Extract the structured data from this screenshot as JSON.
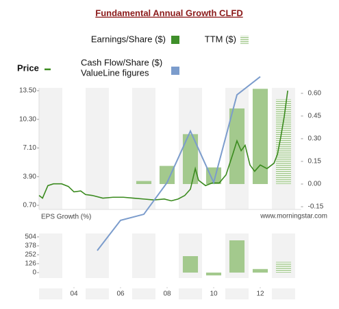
{
  "chart_data": [
    {
      "type": "combo",
      "title": "Fundamental Annual Growth  CLFD",
      "legend_note": "ValueLine figures",
      "xlim": [
        2002.5,
        2013.75
      ],
      "xticks": [
        {
          "value": 2004,
          "label": "04"
        },
        {
          "value": 2006,
          "label": "06"
        },
        {
          "value": 2008,
          "label": "08"
        },
        {
          "value": 2010,
          "label": "10"
        },
        {
          "value": 2012,
          "label": "12"
        }
      ],
      "ylim": [
        0.24,
        13.81
      ],
      "yticks": [
        {
          "value": 13.5,
          "label": "13.50"
        },
        {
          "value": 10.3,
          "label": "10.30"
        },
        {
          "value": 7.1,
          "label": "7.10"
        },
        {
          "value": 3.9,
          "label": "3.90"
        },
        {
          "value": 0.7,
          "label": "0.70"
        }
      ],
      "y2lim": [
        -0.168,
        0.636
      ],
      "y2ticks": [
        {
          "value": 0.6,
          "label": "0.60"
        },
        {
          "value": 0.45,
          "label": "0.45"
        },
        {
          "value": 0.3,
          "label": "0.30"
        },
        {
          "value": 0.15,
          "label": "0.15"
        },
        {
          "value": 0,
          "label": "0.00"
        },
        {
          "value": -0.15,
          "label": "-0.15"
        }
      ],
      "series": [
        {
          "name": "Earnings/Share ($)",
          "type": "bar",
          "axis": "y2",
          "color": "#a3c98d",
          "legend_color": "#3f8f2a",
          "x": [
            2007,
            2008,
            2009,
            2010,
            2011,
            2012
          ],
          "values": [
            0.02,
            0.12,
            0.33,
            0.11,
            0.5,
            0.63
          ]
        },
        {
          "name": "TTM ($)",
          "type": "bar",
          "pattern": "striped",
          "axis": "y2",
          "color": "#a3c98d",
          "x": [
            2013
          ],
          "values": [
            0.56
          ]
        },
        {
          "name": "Price",
          "type": "line",
          "color": "#3a8a1e",
          "x": [
            2002.5,
            2002.65,
            2002.88,
            2003.12,
            2003.47,
            2003.76,
            2004,
            2004.29,
            2004.5,
            2004.79,
            2005.24,
            2005.68,
            2006.12,
            2006.56,
            2007,
            2007.44,
            2007.88,
            2008.18,
            2008.47,
            2008.76,
            2009,
            2009.21,
            2009.35,
            2009.65,
            2009.94,
            2010.24,
            2010.53,
            2010.82,
            2011,
            2011.18,
            2011.35,
            2011.56,
            2011.76,
            2012,
            2012.29,
            2012.59,
            2012.74,
            2012.88,
            2013.03,
            2013.18
          ],
          "values": [
            1.8,
            1.5,
            2.9,
            3.1,
            3.1,
            2.8,
            2.2,
            2.3,
            1.9,
            1.8,
            1.5,
            1.6,
            1.6,
            1.5,
            1.4,
            1.3,
            1.4,
            1.2,
            1.4,
            1.8,
            2.5,
            4.8,
            3.5,
            2.9,
            3.2,
            3.2,
            4.1,
            6.4,
            7.9,
            6.8,
            7.4,
            5.2,
            4.5,
            5.2,
            4.8,
            5.4,
            6.4,
            8.3,
            10.6,
            13.5
          ]
        },
        {
          "name": "Cash Flow/Share ($)",
          "type": "line",
          "axis": "y2",
          "color": "#7b9ccc",
          "x": [
            2005,
            2006,
            2007,
            2008,
            2009,
            2010,
            2011,
            2012
          ],
          "values": [
            -0.44,
            -0.24,
            -0.2,
            0.01,
            0.35,
            0.01,
            0.59,
            0.71
          ]
        }
      ]
    },
    {
      "type": "bar",
      "title": "EPS Growth (%)",
      "source": "www.morningstar.com",
      "ylim": [
        -78,
        552
      ],
      "yticks": [
        504,
        378,
        252,
        126,
        0
      ],
      "series": [
        {
          "color": "#a3c98d",
          "x": [
            2009,
            2010,
            2011,
            2012
          ],
          "values": [
            232,
            -40,
            455,
            50
          ]
        },
        {
          "color": "#a3c98d",
          "pattern": "striped",
          "x": [
            2013
          ],
          "values": [
            150
          ]
        }
      ]
    }
  ]
}
